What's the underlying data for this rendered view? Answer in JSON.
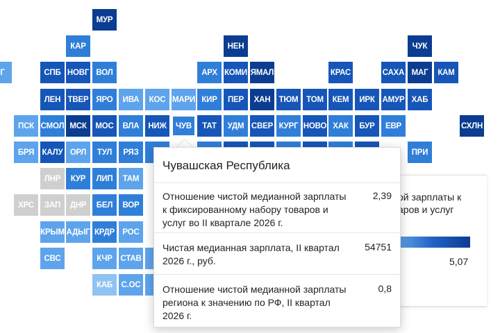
{
  "colors": {
    "dark": "#0b3d91",
    "mid_dark": "#1656b8",
    "mid": "#2f7fd9",
    "light": "#5ea4ec",
    "pale": "#8fc3f2",
    "grey": "#cfcfcf"
  },
  "regions": [
    {
      "code": "МУР",
      "row": 0,
      "col": 4,
      "shade": "dark"
    },
    {
      "code": "КАР",
      "row": 1,
      "col": 3,
      "shade": "mid"
    },
    {
      "code": "НЕН",
      "row": 1,
      "col": 9,
      "shade": "dark"
    },
    {
      "code": "ЧУК",
      "row": 1,
      "col": 16,
      "shade": "dark"
    },
    {
      "code": "НГ",
      "row": 2,
      "col": 0,
      "shade": "light"
    },
    {
      "code": "СПБ",
      "row": 2,
      "col": 2,
      "shade": "mid_dark"
    },
    {
      "code": "НОВГ",
      "row": 2,
      "col": 3,
      "shade": "mid_dark"
    },
    {
      "code": "ВОЛ",
      "row": 2,
      "col": 4,
      "shade": "mid"
    },
    {
      "code": "АРХ",
      "row": 2,
      "col": 8,
      "shade": "mid"
    },
    {
      "code": "КОМИ",
      "row": 2,
      "col": 9,
      "shade": "mid_dark"
    },
    {
      "code": "ЯМАЛ",
      "row": 2,
      "col": 10,
      "shade": "dark"
    },
    {
      "code": "КРАС",
      "row": 2,
      "col": 13,
      "shade": "mid_dark"
    },
    {
      "code": "САХА",
      "row": 2,
      "col": 15,
      "shade": "mid_dark"
    },
    {
      "code": "МАГ",
      "row": 2,
      "col": 16,
      "shade": "dark"
    },
    {
      "code": "КАМ",
      "row": 2,
      "col": 17,
      "shade": "mid_dark"
    },
    {
      "code": "ЛЕН",
      "row": 3,
      "col": 2,
      "shade": "mid_dark"
    },
    {
      "code": "ТВЕР",
      "row": 3,
      "col": 3,
      "shade": "mid_dark"
    },
    {
      "code": "ЯРО",
      "row": 3,
      "col": 4,
      "shade": "mid"
    },
    {
      "code": "ИВА",
      "row": 3,
      "col": 5,
      "shade": "light"
    },
    {
      "code": "КОС",
      "row": 3,
      "col": 6,
      "shade": "light"
    },
    {
      "code": "МАРИ",
      "row": 3,
      "col": 7,
      "shade": "light"
    },
    {
      "code": "КИР",
      "row": 3,
      "col": 8,
      "shade": "mid"
    },
    {
      "code": "ПЕР",
      "row": 3,
      "col": 9,
      "shade": "mid_dark"
    },
    {
      "code": "ХАН",
      "row": 3,
      "col": 10,
      "shade": "dark"
    },
    {
      "code": "ТЮМ",
      "row": 3,
      "col": 11,
      "shade": "mid_dark"
    },
    {
      "code": "ТОМ",
      "row": 3,
      "col": 12,
      "shade": "mid_dark"
    },
    {
      "code": "КЕМ",
      "row": 3,
      "col": 13,
      "shade": "mid_dark"
    },
    {
      "code": "ИРК",
      "row": 3,
      "col": 14,
      "shade": "mid_dark"
    },
    {
      "code": "АМУР",
      "row": 3,
      "col": 15,
      "shade": "mid_dark"
    },
    {
      "code": "ХАБ",
      "row": 3,
      "col": 16,
      "shade": "mid_dark"
    },
    {
      "code": "ПСК",
      "row": 4,
      "col": 1,
      "shade": "light"
    },
    {
      "code": "СМОЛ",
      "row": 4,
      "col": 2,
      "shade": "mid"
    },
    {
      "code": "МСК",
      "row": 4,
      "col": 3,
      "shade": "dark"
    },
    {
      "code": "МОС",
      "row": 4,
      "col": 4,
      "shade": "mid_dark"
    },
    {
      "code": "ВЛА",
      "row": 4,
      "col": 5,
      "shade": "mid"
    },
    {
      "code": "НИЖ",
      "row": 4,
      "col": 6,
      "shade": "mid_dark"
    },
    {
      "code": "ЧУВ",
      "row": 4,
      "col": 7,
      "shade": "mid",
      "selected": true
    },
    {
      "code": "ТАТ",
      "row": 4,
      "col": 8,
      "shade": "mid_dark"
    },
    {
      "code": "УДМ",
      "row": 4,
      "col": 9,
      "shade": "mid"
    },
    {
      "code": "СВЕР",
      "row": 4,
      "col": 10,
      "shade": "mid_dark"
    },
    {
      "code": "КУРГ",
      "row": 4,
      "col": 11,
      "shade": "mid"
    },
    {
      "code": "НОВО",
      "row": 4,
      "col": 12,
      "shade": "mid_dark"
    },
    {
      "code": "ХАК",
      "row": 4,
      "col": 13,
      "shade": "mid"
    },
    {
      "code": "БУР",
      "row": 4,
      "col": 14,
      "shade": "mid_dark"
    },
    {
      "code": "ЕВР",
      "row": 4,
      "col": 15,
      "shade": "mid"
    },
    {
      "code": "СХЛН",
      "row": 4,
      "col": 18,
      "shade": "dark"
    },
    {
      "code": "БРЯ",
      "row": 5,
      "col": 1,
      "shade": "light"
    },
    {
      "code": "КАЛУ",
      "row": 5,
      "col": 2,
      "shade": "mid_dark"
    },
    {
      "code": "ОРЛ",
      "row": 5,
      "col": 3,
      "shade": "light"
    },
    {
      "code": "ТУЛ",
      "row": 5,
      "col": 4,
      "shade": "mid"
    },
    {
      "code": "РЯЗ",
      "row": 5,
      "col": 5,
      "shade": "mid"
    },
    {
      "code": "",
      "row": 5,
      "col": 6,
      "shade": "mid"
    },
    {
      "code": "",
      "row": 5,
      "col": 8,
      "shade": "mid"
    },
    {
      "code": "",
      "row": 5,
      "col": 9,
      "shade": "mid_dark"
    },
    {
      "code": "",
      "row": 5,
      "col": 10,
      "shade": "mid_dark"
    },
    {
      "code": "",
      "row": 5,
      "col": 11,
      "shade": "mid"
    },
    {
      "code": "",
      "row": 5,
      "col": 12,
      "shade": "mid_dark"
    },
    {
      "code": "",
      "row": 5,
      "col": 13,
      "shade": "mid"
    },
    {
      "code": "",
      "row": 5,
      "col": 14,
      "shade": "mid_dark"
    },
    {
      "code": "ПРИ",
      "row": 5,
      "col": 16,
      "shade": "mid"
    },
    {
      "code": "ЛНР",
      "row": 6,
      "col": 2,
      "shade": "grey"
    },
    {
      "code": "КУР",
      "row": 6,
      "col": 3,
      "shade": "mid"
    },
    {
      "code": "ЛИП",
      "row": 6,
      "col": 4,
      "shade": "mid"
    },
    {
      "code": "ТАМ",
      "row": 6,
      "col": 5,
      "shade": "light"
    },
    {
      "code": "ХРС",
      "row": 7,
      "col": 1,
      "shade": "grey"
    },
    {
      "code": "ЗАП",
      "row": 7,
      "col": 2,
      "shade": "grey"
    },
    {
      "code": "ДНР",
      "row": 7,
      "col": 3,
      "shade": "grey"
    },
    {
      "code": "БЕЛ",
      "row": 7,
      "col": 4,
      "shade": "mid"
    },
    {
      "code": "ВОР",
      "row": 7,
      "col": 5,
      "shade": "mid"
    },
    {
      "code": "КРЫМ",
      "row": 8,
      "col": 2,
      "shade": "light"
    },
    {
      "code": "АДЫГ",
      "row": 8,
      "col": 3,
      "shade": "light"
    },
    {
      "code": "КРДР",
      "row": 8,
      "col": 4,
      "shade": "mid"
    },
    {
      "code": "РОС",
      "row": 8,
      "col": 5,
      "shade": "light"
    },
    {
      "code": "СВС",
      "row": 9,
      "col": 2,
      "shade": "light"
    },
    {
      "code": "КЧР",
      "row": 9,
      "col": 4,
      "shade": "light"
    },
    {
      "code": "СТАВ",
      "row": 9,
      "col": 5,
      "shade": "light"
    },
    {
      "code": "Ч",
      "row": 9,
      "col": 6,
      "shade": "light"
    },
    {
      "code": "КАБ",
      "row": 10,
      "col": 4,
      "shade": "pale"
    },
    {
      "code": "С.ОС",
      "row": 10,
      "col": 5,
      "shade": "light"
    },
    {
      "code": "И",
      "row": 10,
      "col": 6,
      "shade": "light"
    }
  ],
  "legend": {
    "title_visible": "ой зарплаты к\nаров и услуг",
    "max_value": "5,07"
  },
  "tooltip": {
    "title": "Чувашская Республика",
    "rows": [
      {
        "label": "Отношение чистой медианной зарплаты к фиксированному набору товаров и услуг во II квартале 2026 г.",
        "value": "2,39"
      },
      {
        "label": "Чистая медианная зарплата, II квартал 2026 г., руб.",
        "value": "54751"
      },
      {
        "label": "Отношение чистой медианной зарплаты региона к значению по РФ, II квартал 2026 г.",
        "value": "0,8"
      }
    ]
  }
}
